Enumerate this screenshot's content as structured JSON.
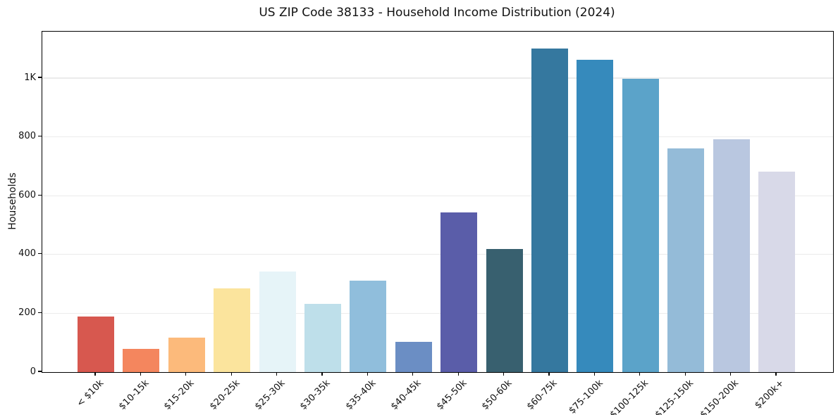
{
  "chart_data": {
    "type": "bar",
    "title": "US ZIP Code 38133 - Household Income Distribution (2024)",
    "xlabel": "",
    "ylabel": "Households",
    "categories": [
      "< $10k",
      "$10-15k",
      "$15-20k",
      "$20-25k",
      "$25-30k",
      "$30-35k",
      "$35-40k",
      "$40-45k",
      "$45-50k",
      "$50-60k",
      "$60-75k",
      "$75-100k",
      "$100-125k",
      "$125-150k",
      "$150-200k",
      "$200k+"
    ],
    "values": [
      189,
      79,
      117,
      284,
      343,
      233,
      310,
      102,
      544,
      419,
      1100,
      1063,
      997,
      762,
      792,
      681
    ],
    "bar_colors": [
      "#d7584f",
      "#f4865e",
      "#fcba7b",
      "#fbe49d",
      "#e6f4f8",
      "#bedfea",
      "#90bedc",
      "#6b8ec4",
      "#5a5da9",
      "#38606f",
      "#35789f",
      "#368abc",
      "#5ba3c9",
      "#94bbd8",
      "#b9c7e0",
      "#d8d9e8"
    ],
    "ylim": [
      0,
      1158
    ],
    "yticks": [
      {
        "value": 0,
        "label": "0"
      },
      {
        "value": 200,
        "label": "200"
      },
      {
        "value": 400,
        "label": "400"
      },
      {
        "value": 600,
        "label": "600"
      },
      {
        "value": 800,
        "label": "800"
      },
      {
        "value": 1000,
        "label": "1K"
      }
    ],
    "grid": "horizontal",
    "grid_color": "#ebebeb",
    "spine_color": "#000000",
    "background_color": "#ffffff",
    "legend": "none"
  }
}
